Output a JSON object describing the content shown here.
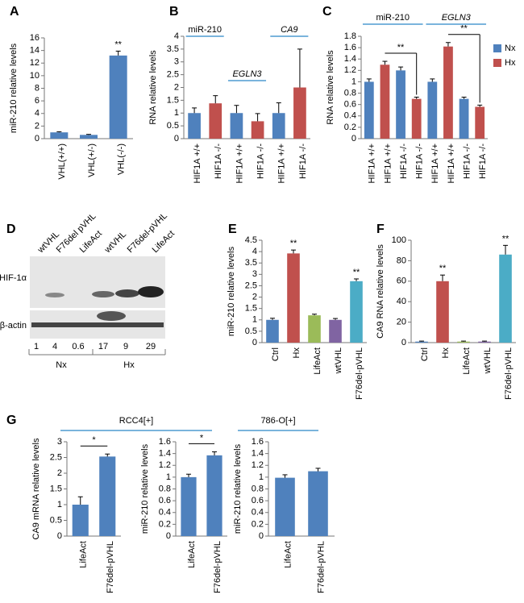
{
  "chart_data": [
    {
      "type": "bar",
      "panel": "A",
      "ylabel": "miR-210 relative levels",
      "categories": [
        "VHL(+/+)",
        "VHL(+/-)",
        "VHL(-/-)"
      ],
      "values": [
        1,
        0.6,
        13.2
      ],
      "errors": [
        0.1,
        0.08,
        0.7
      ],
      "colors": [
        "#4f81bd",
        "#4f81bd",
        "#4f81bd"
      ],
      "ylim": [
        0,
        16
      ],
      "yticks": [
        0,
        2,
        4,
        6,
        8,
        10,
        12,
        14,
        16
      ],
      "annotations": [
        "**"
      ]
    },
    {
      "type": "bar",
      "panel": "B",
      "ylabel": "RNA relative levels",
      "group_labels": [
        "miR-210",
        "EGLN3",
        "CA9"
      ],
      "categories": [
        "HIF1A +/+",
        "HIF1A -/-",
        "HIF1A +/+",
        "HIF1A -/-",
        "HIF1A +/+",
        "HIF1A -/-"
      ],
      "values": [
        1,
        1.38,
        1,
        0.68,
        1,
        2
      ],
      "errors": [
        0.2,
        0.3,
        0.3,
        0.3,
        0.4,
        1.5
      ],
      "colors": [
        "#4f81bd",
        "#c0504d",
        "#4f81bd",
        "#c0504d",
        "#4f81bd",
        "#c0504d"
      ],
      "ylim": [
        0,
        4
      ],
      "yticks": [
        0,
        0.5,
        1,
        1.5,
        2,
        2.5,
        3,
        3.5,
        4
      ]
    },
    {
      "type": "bar",
      "panel": "C",
      "ylabel": "RNA relative levels",
      "group_labels": [
        "miR-210",
        "EGLN3"
      ],
      "categories": [
        "HIF1A +/+",
        "HIF1A +/+",
        "HIF1A -/-",
        "HIF1A -/-",
        "HIF1A +/+",
        "HIF1A +/+",
        "HIF1A -/-",
        "HIF1A -/-"
      ],
      "values": [
        1,
        1.3,
        1.2,
        0.7,
        1,
        1.62,
        0.7,
        0.56
      ],
      "errors": [
        0.05,
        0.06,
        0.06,
        0.03,
        0.05,
        0.07,
        0.03,
        0.03
      ],
      "colors": [
        "#4f81bd",
        "#c0504d",
        "#4f81bd",
        "#c0504d",
        "#4f81bd",
        "#c0504d",
        "#4f81bd",
        "#c0504d"
      ],
      "legend": [
        {
          "name": "Nx",
          "color": "#4f81bd"
        },
        {
          "name": "Hx",
          "color": "#c0504d"
        }
      ],
      "ylim": [
        0,
        1.8
      ],
      "yticks": [
        0,
        0.2,
        0.4,
        0.6,
        0.8,
        1,
        1.2,
        1.4,
        1.6,
        1.8
      ],
      "annotations": [
        "**",
        "**"
      ]
    },
    {
      "type": "bar",
      "panel": "E",
      "ylabel": "miR-210 relative levels",
      "categories": [
        "Ctrl",
        "Hx",
        "LifeAct",
        "wtVHL",
        "F76del-pVHL"
      ],
      "values": [
        1,
        3.92,
        1.2,
        1,
        2.7
      ],
      "errors": [
        0.07,
        0.15,
        0.05,
        0.06,
        0.1
      ],
      "colors": [
        "#4f81bd",
        "#c0504d",
        "#9bbb59",
        "#8064a2",
        "#4bacc6"
      ],
      "ylim": [
        0,
        4.5
      ],
      "yticks": [
        0,
        0.5,
        1,
        1.5,
        2,
        2.5,
        3,
        3.5,
        4,
        4.5
      ],
      "annotations": [
        "**",
        "**"
      ]
    },
    {
      "type": "bar",
      "panel": "F",
      "ylabel": "CA9 RNA relative levels",
      "categories": [
        "Ctrl",
        "Hx",
        "LifeAct",
        "wtVHL",
        "F76del-pVHL"
      ],
      "values": [
        1,
        60,
        1,
        1,
        86
      ],
      "errors": [
        0.5,
        6,
        0.5,
        0.5,
        9
      ],
      "colors": [
        "#4f81bd",
        "#c0504d",
        "#9bbb59",
        "#8064a2",
        "#4bacc6"
      ],
      "ylim": [
        0,
        100
      ],
      "yticks": [
        0,
        20,
        40,
        60,
        80,
        100
      ],
      "annotations": [
        "**",
        "**"
      ]
    },
    {
      "type": "bar",
      "panel": "G",
      "header": "RCC4[+]",
      "ylabel": "CA9 mRNA relative levels",
      "categories": [
        "LifeAct",
        "F76del-pVHL"
      ],
      "values": [
        1,
        2.53
      ],
      "errors": [
        0.25,
        0.08
      ],
      "colors": [
        "#4f81bd",
        "#4f81bd"
      ],
      "ylim": [
        0,
        3
      ],
      "yticks": [
        0,
        0.5,
        1,
        1.5,
        2,
        2.5,
        3
      ],
      "annotations": [
        "*"
      ]
    },
    {
      "type": "bar",
      "ylabel": "miR-210 relative levels",
      "categories": [
        "LifeAct",
        "F76del-pVHL"
      ],
      "values": [
        1,
        1.37
      ],
      "errors": [
        0.05,
        0.06
      ],
      "colors": [
        "#4f81bd",
        "#4f81bd"
      ],
      "ylim": [
        0,
        1.6
      ],
      "yticks": [
        0,
        0.2,
        0.4,
        0.6,
        0.8,
        1,
        1.2,
        1.4,
        1.6
      ],
      "annotations": [
        "*"
      ]
    },
    {
      "type": "bar",
      "header": "786-O[+]",
      "ylabel": "miR-210 relative levels",
      "categories": [
        "LifeAct",
        "F76del-pVHL"
      ],
      "values": [
        0.99,
        1.1
      ],
      "errors": [
        0.05,
        0.05
      ],
      "colors": [
        "#4f81bd",
        "#4f81bd"
      ],
      "ylim": [
        0,
        1.6
      ],
      "yticks": [
        0,
        0.2,
        0.4,
        0.6,
        0.8,
        1,
        1.2,
        1.4,
        1.6
      ]
    }
  ],
  "blot": {
    "panel": "D",
    "lanes": [
      "wtVHL",
      "F76del pVHL",
      "LifeAct",
      "wtVHL",
      "F76del-pVHL",
      "LifeAct"
    ],
    "rows": [
      "HIF-1α",
      "β-actin"
    ],
    "quantification": [
      1,
      4,
      0.6,
      17,
      9,
      29
    ],
    "conditions": [
      "Nx",
      "Hx"
    ]
  }
}
